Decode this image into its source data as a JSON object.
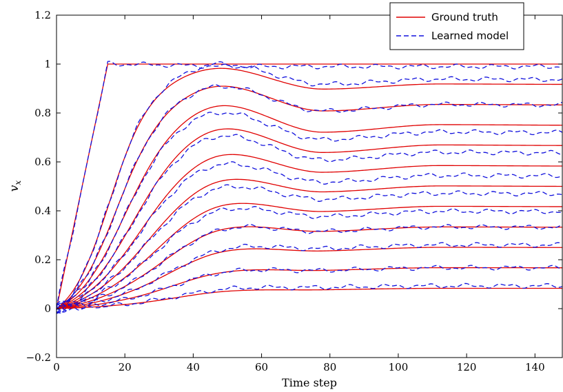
{
  "chart_data": {
    "type": "line",
    "title": "",
    "xlabel": "Time step",
    "ylabel": "v",
    "ylabel_subscript": "x",
    "xlim": [
      0,
      148
    ],
    "ylim": [
      -0.2,
      1.2
    ],
    "xticks": [
      0,
      20,
      40,
      60,
      80,
      100,
      120,
      140
    ],
    "yticks": [
      -0.2,
      0,
      0.2,
      0.4,
      0.6,
      0.8,
      1,
      1.2
    ],
    "ytick_labels": [
      "−0.2",
      "0",
      "0.2",
      "0.4",
      "0.6",
      "0.8",
      "1",
      "1.2"
    ],
    "grid": false,
    "legend_position": "top-right",
    "legend": [
      {
        "name": "Ground truth",
        "color": "#e00000",
        "style": "solid"
      },
      {
        "name": "Learned model",
        "color": "#1010dd",
        "style": "dashed"
      }
    ],
    "series_model": {
      "description_of_family": "12 step-response trajectories, one per final value",
      "final_values": [
        1.0,
        0.917,
        0.833,
        0.75,
        0.667,
        0.583,
        0.5,
        0.417,
        0.333,
        0.25,
        0.167,
        0.083
      ],
      "rise_end_step": [
        15,
        17,
        19,
        21,
        23,
        25,
        27,
        29,
        31,
        33,
        35,
        37
      ],
      "peak_step": 47,
      "trough_step": 78,
      "second_peak_step": 112,
      "peak_overshoot_fraction": 0.45,
      "trough_undershoot_fraction": 0.12,
      "second_peak_fraction": 0.01
    },
    "learned_model_offsets": [
      -0.01,
      0.02,
      0.0,
      -0.03,
      -0.03,
      -0.04,
      -0.03,
      -0.02,
      0.0,
      0.01,
      0.0,
      0.01
    ]
  }
}
